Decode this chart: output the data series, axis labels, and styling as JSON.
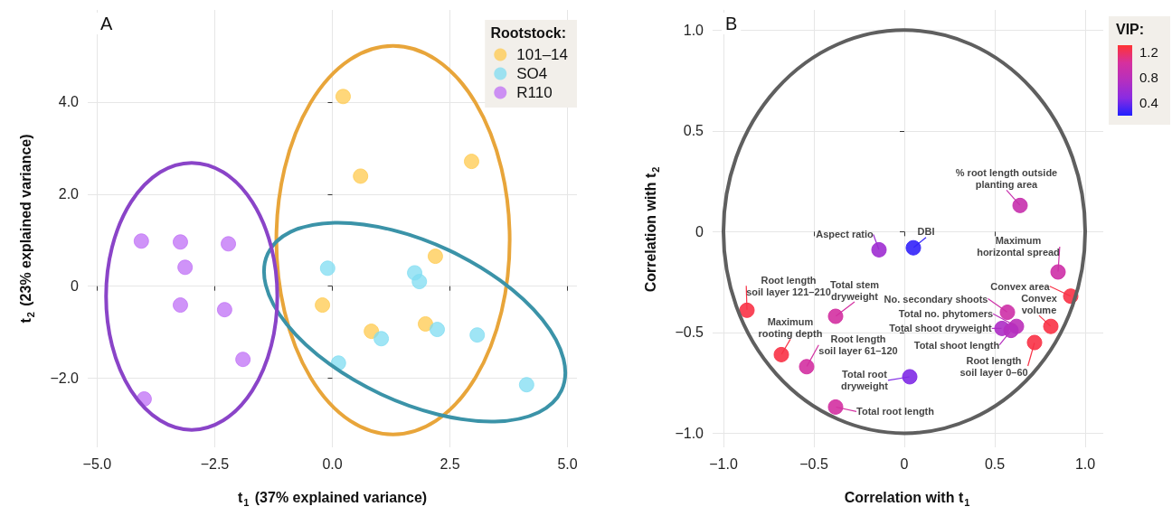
{
  "chart_data": [
    {
      "type": "scatter",
      "title": "A",
      "xlabel": "t$_{1}$ (37% explained variance)",
      "ylabel": "t$_{2}$ (23% explained variance)",
      "legend_title": "Rootstock:",
      "legend": "top right",
      "grid": true,
      "marker": "circle",
      "xlim": [
        -5.2,
        5.2
      ],
      "ylim": [
        -3.5,
        6.0
      ],
      "xticks": [
        {
          "value": -5,
          "label": "−5.0"
        },
        {
          "value": -2.5,
          "label": "−2.5"
        },
        {
          "value": 0,
          "label": "0.0"
        },
        {
          "value": 2.5,
          "label": "2.5"
        },
        {
          "value": 5,
          "label": "5.0"
        }
      ],
      "yticks": [
        {
          "value": -2,
          "label": "−2.0"
        },
        {
          "value": 0,
          "label": "0"
        },
        {
          "value": 2,
          "label": "2.0"
        },
        {
          "value": 4,
          "label": "4.0"
        }
      ],
      "series": [
        {
          "type": "scatter",
          "name": "101–14",
          "color": "#ffc94d",
          "x": [
            0.23,
            0.6,
            2.96,
            2.19,
            -0.21,
            0.83,
            1.98
          ],
          "values": [
            4.12,
            2.39,
            2.71,
            0.65,
            -0.41,
            -0.98,
            -0.82
          ]
        },
        {
          "type": "scatter",
          "name": "SO4",
          "color": "#7fdcf2",
          "x": [
            -0.1,
            1.75,
            1.85,
            1.04,
            2.23,
            3.08,
            0.13,
            4.13
          ],
          "values": [
            0.39,
            0.29,
            0.1,
            -1.14,
            -0.94,
            -1.06,
            -1.67,
            -2.14
          ]
        },
        {
          "type": "scatter",
          "name": "R110",
          "color": "#bf6ff5",
          "x": [
            -4.06,
            -3.23,
            -2.21,
            -3.13,
            -3.23,
            -2.29,
            -1.9,
            -4.0
          ],
          "values": [
            0.98,
            0.96,
            0.92,
            0.41,
            -0.41,
            -0.51,
            -1.59,
            -2.45
          ]
        }
      ]
    },
    {
      "type": "scatter",
      "title": "B",
      "xlabel": "Correlation with t$_{1}$",
      "ylabel": "Correlation with t$_{2}$",
      "clabel": "VIP:",
      "clim": [
        0.2,
        1.3
      ],
      "cticks": [
        0.4,
        0.8,
        1.2
      ],
      "grid": true,
      "marker": "circle",
      "xlim": [
        -1.06,
        1.1
      ],
      "ylim": [
        -1.07,
        1.1
      ],
      "xticks": [
        {
          "value": -1,
          "label": "−1.0"
        },
        {
          "value": -0.5,
          "label": "−0.5"
        },
        {
          "value": 0,
          "label": "0"
        },
        {
          "value": 0.5,
          "label": "0.5"
        },
        {
          "value": 1,
          "label": "1.0"
        }
      ],
      "yticks": [
        {
          "value": -1,
          "label": "−1.0"
        },
        {
          "value": -0.5,
          "label": "−0.5"
        },
        {
          "value": 0,
          "label": "0"
        },
        {
          "value": 0.5,
          "label": "0.5"
        },
        {
          "value": 1,
          "label": "1.0"
        }
      ],
      "series": [
        {
          "type": "scatter",
          "x": [
            0.64,
            -0.14,
            0.05,
            0.85,
            0.92,
            0.57,
            0.81,
            0.54,
            0.62,
            0.59,
            0.72,
            -0.87,
            -0.38,
            -0.68,
            -0.54,
            0.03,
            -0.38
          ],
          "values": [
            0.13,
            -0.09,
            -0.08,
            -0.2,
            -0.32,
            -0.4,
            -0.47,
            -0.48,
            -0.47,
            -0.49,
            -0.55,
            -0.39,
            -0.42,
            -0.61,
            -0.67,
            -0.72,
            -0.87
          ],
          "cvalues": [
            0.9,
            0.6,
            0.25,
            0.95,
            1.25,
            0.95,
            1.25,
            0.7,
            0.8,
            0.75,
            1.25,
            1.25,
            1.0,
            1.25,
            1.0,
            0.45,
            1.0
          ],
          "colors": [
            "#c730ad",
            "#9e2dd2",
            "#3322fa",
            "#cd30a7",
            "#f83246",
            "#cd30a7",
            "#f83246",
            "#ad2ec5",
            "#bb2fb9",
            "#b52fbf",
            "#f83246",
            "#f83246",
            "#d330a1",
            "#f83246",
            "#d330a1",
            "#802ae5",
            "#d330a1"
          ]
        }
      ],
      "annotations": [
        {
          "text": "% root length outside\nplanting area",
          "x": 0.64,
          "y": 0.13
        },
        {
          "text": "Aspect ratio",
          "x": -0.14,
          "y": -0.09
        },
        {
          "text": "DBI",
          "x": 0.05,
          "y": -0.08
        },
        {
          "text": "Maximum\nhorizontal spread",
          "x": 0.85,
          "y": -0.2
        },
        {
          "text": "Convex area",
          "x": 0.92,
          "y": -0.32
        },
        {
          "text": "No. secondary shoots",
          "x": 0.57,
          "y": -0.4
        },
        {
          "text": "Convex\nvolume",
          "x": 0.81,
          "y": -0.47
        },
        {
          "text": "Total shoot dryweight",
          "x": 0.54,
          "y": -0.48
        },
        {
          "text": "Total no. phytomers",
          "x": 0.62,
          "y": -0.47
        },
        {
          "text": "Total shoot length",
          "x": 0.59,
          "y": -0.49
        },
        {
          "text": "Root length\nsoil layer 0–60",
          "x": 0.72,
          "y": -0.55
        },
        {
          "text": "Root length\nsoil layer 121–210",
          "x": -0.87,
          "y": -0.39
        },
        {
          "text": "Total stem\ndryweight",
          "x": -0.38,
          "y": -0.42
        },
        {
          "text": "Maximum\nrooting depth",
          "x": -0.68,
          "y": -0.61
        },
        {
          "text": "Root length\nsoil layer 61–120",
          "x": -0.54,
          "y": -0.67
        },
        {
          "text": "Total root\ndryweight",
          "x": 0.03,
          "y": -0.72
        },
        {
          "text": "Total root length",
          "x": -0.38,
          "y": -0.87
        }
      ]
    }
  ]
}
